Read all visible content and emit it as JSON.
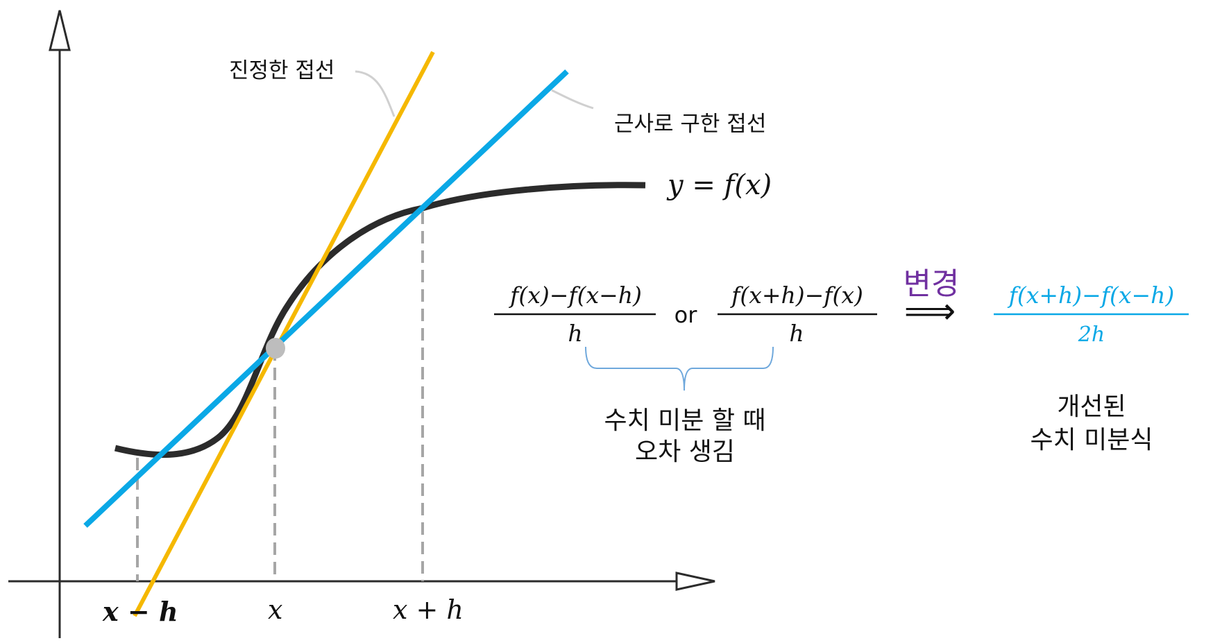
{
  "labels": {
    "true_tangent": "진정한 접선",
    "approx_tangent": "근사로 구한 접선",
    "curve": "y = f(x)",
    "x_minus_h": "x − h",
    "x": "x",
    "x_plus_h": "x + h"
  },
  "formulas": {
    "backward": {
      "numerator": "f(x)−f(x−h)",
      "denominator": "h"
    },
    "or": "or",
    "forward": {
      "numerator": "f(x+h)−f(x)",
      "denominator": "h"
    },
    "arrow_label": "변경",
    "arrow": "⟹",
    "central": {
      "numerator": "f(x+h)−f(x−h)",
      "denominator": "2h"
    }
  },
  "notes": {
    "error_line1": "수치 미분 할 때",
    "error_line2": "오차 생김",
    "improved_line1": "개선된",
    "improved_line2": "수치 미분식"
  },
  "colors": {
    "curve": "#2b2b2b",
    "true_tangent": "#f5b800",
    "approx_tangent": "#0aa8e6",
    "dashed": "#a6a6a6",
    "point": "#bdbdbd",
    "arrow_label": "#7030a0",
    "central": "#0aa8e6",
    "brace": "#6fa8dc"
  }
}
